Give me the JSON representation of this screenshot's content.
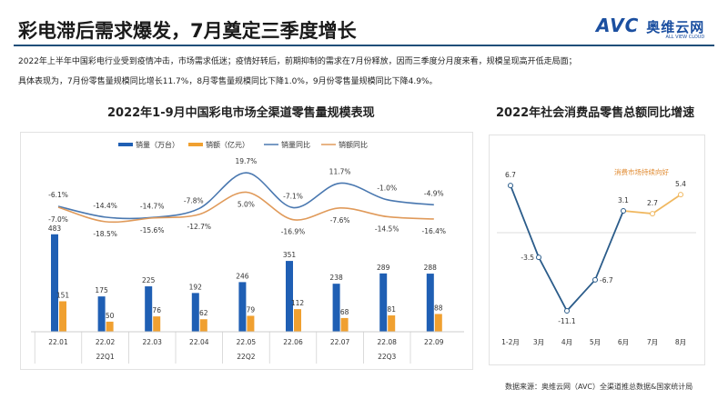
{
  "header": {
    "title": "彩电滞后需求爆发，7月奠定三季度增长",
    "logo_text": "AVC",
    "logo_cn": "奥维云网",
    "logo_en": "ALL VIEW CLOUD"
  },
  "intro": [
    "2022年上半年中国彩电行业受到疫情冲击，市场需求低迷；疫情好转后，前期抑制的需求在7月份释放，因而三季度分月度来看，规模呈现高开低走局面；",
    "具体表现为，7月份零售量规模同比增长11.7%，8月零售量规模同比下降1.0%，9月份零售量规模同比下降4.9%。"
  ],
  "source": "数据来源：奥维云网（AVC）全渠道推总数据&国家统计局",
  "colors": {
    "volume": "#1f5fb4",
    "value": "#f0a030",
    "volume_yoy": "#4a78b0",
    "value_yoy": "#e09a5a",
    "cpi_line": "#2b5c8a",
    "cpi_good": "#f0b860"
  },
  "chart_data": [
    {
      "type": "bar",
      "title": "2022年1-9月中国彩电市场全渠道零售量规模表现",
      "categories": [
        "22.01",
        "22.02",
        "22.03",
        "22.04",
        "22.05",
        "22.06",
        "22.07",
        "22.08",
        "22.09"
      ],
      "quarters": [
        "22Q1",
        "22Q2",
        "22Q3"
      ],
      "series": [
        {
          "name": "销量（万台）",
          "type": "bar",
          "values": [
            483,
            175,
            225,
            192,
            246,
            351,
            238,
            289,
            288
          ]
        },
        {
          "name": "销额（亿元）",
          "type": "bar",
          "values": [
            151,
            50,
            76,
            62,
            79,
            112,
            68,
            81,
            88
          ]
        },
        {
          "name": "销量同比",
          "type": "line",
          "values": [
            -6.1,
            -14.4,
            -14.7,
            -7.8,
            19.7,
            -7.1,
            11.7,
            -1.0,
            -4.9
          ],
          "labels": [
            "-6.1%",
            "-14.4%",
            "-14.7%",
            "-7.8%",
            "19.7%",
            "-7.1%",
            "11.7%",
            "-1.0%",
            "-4.9%"
          ]
        },
        {
          "name": "销额同比",
          "type": "line",
          "values": [
            -7.0,
            -18.5,
            -15.6,
            -12.7,
            5.0,
            -16.9,
            -7.6,
            -14.5,
            -16.4
          ],
          "labels": [
            "-7.0%",
            "-18.5%",
            "-15.6%",
            "-12.7%",
            "5.0%",
            "-16.9%",
            "-7.6%",
            "-14.5%",
            "-16.4%"
          ]
        }
      ],
      "legend": "top"
    },
    {
      "type": "line",
      "title": "2022年社会消费品零售总额同比增速",
      "categories": [
        "1-2月",
        "3月",
        "4月",
        "5月",
        "6月",
        "7月",
        "8月"
      ],
      "values": [
        6.7,
        -3.5,
        -11.1,
        -6.7,
        3.1,
        2.7,
        5.4
      ],
      "labels": [
        "6.7",
        "-3.5",
        "-11.1",
        "-6.7",
        "3.1",
        "2.7",
        "5.4"
      ],
      "annotation": "消费市场持续向好"
    }
  ]
}
